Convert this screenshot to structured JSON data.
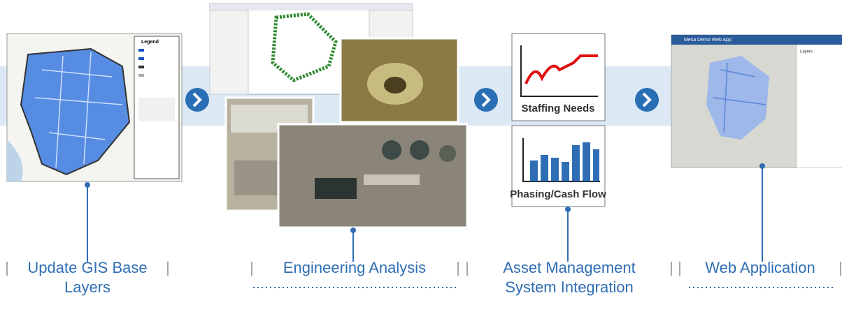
{
  "steps": [
    {
      "label": [
        "Update GIS Base",
        "Layers"
      ]
    },
    {
      "label": [
        "Engineering Analysis"
      ]
    },
    {
      "label": [
        "Asset Management",
        "System Integration"
      ]
    },
    {
      "label": [
        "Web Application"
      ]
    }
  ],
  "charts": {
    "staffing": "Staffing Needs",
    "phasing": "Phasing/Cash Flow"
  },
  "map_legend": {
    "title": "Legend"
  },
  "web_app": {
    "title": "Mesa Demo Web App",
    "panel": "Layers"
  }
}
